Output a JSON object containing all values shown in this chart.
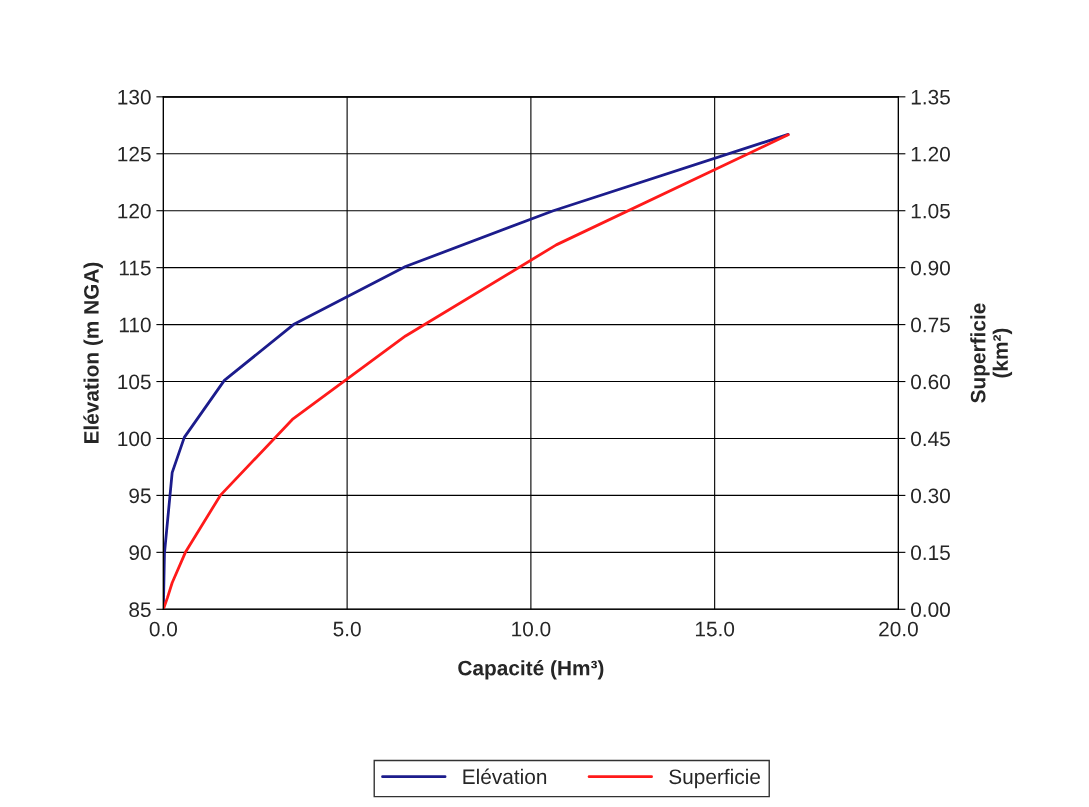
{
  "chart_data": {
    "type": "line",
    "xlabel": "Capacité (Hm³)",
    "ylabel": "Elévation (m NGA)",
    "y2label": "Superficie\n(km²)",
    "series": [
      {
        "name": "Elévation",
        "color": "#1c1c8c",
        "x": [
          0,
          0.03,
          0.24,
          0.57,
          1.66,
          3.54,
          6.59,
          10.61,
          17.0
        ],
        "values": [
          85,
          89.9,
          97,
          100.1,
          105.1,
          110,
          115.1,
          120,
          126.7
        ]
      },
      {
        "name": "Superficie",
        "color": "#ff1a1a",
        "axis": "y2",
        "x": [
          0,
          0.11,
          0.24,
          0.6,
          1.55,
          3.51,
          6.59,
          10.69,
          17.0
        ],
        "values": [
          0,
          0.03,
          0.07,
          0.15,
          0.3,
          0.5,
          0.72,
          0.96,
          1.25
        ]
      }
    ],
    "xlim": [
      0,
      20
    ],
    "xticks": [
      {
        "value": 0,
        "label": "0.0"
      },
      {
        "value": 5,
        "label": "5.0"
      },
      {
        "value": 10,
        "label": "10.0"
      },
      {
        "value": 15,
        "label": "15.0"
      },
      {
        "value": 20,
        "label": "20.0"
      }
    ],
    "ylim": [
      85,
      130
    ],
    "yticks": [
      85,
      90,
      95,
      100,
      105,
      110,
      115,
      120,
      125,
      130
    ],
    "y2lim": [
      0,
      1.35
    ],
    "y2ticks": [
      {
        "value": 0,
        "label": "0.00"
      },
      {
        "value": 0.15,
        "label": "0.15"
      },
      {
        "value": 0.3,
        "label": "0.30"
      },
      {
        "value": 0.45,
        "label": "0.45"
      },
      {
        "value": 0.6,
        "label": "0.60"
      },
      {
        "value": 0.75,
        "label": "0.75"
      },
      {
        "value": 0.9,
        "label": "0.90"
      },
      {
        "value": 1.05,
        "label": "1.05"
      },
      {
        "value": 1.2,
        "label": "1.20"
      },
      {
        "value": 1.35,
        "label": "1.35"
      }
    ],
    "grid": true,
    "legend": "bottom",
    "marker": "none",
    "line_style": "solid"
  }
}
